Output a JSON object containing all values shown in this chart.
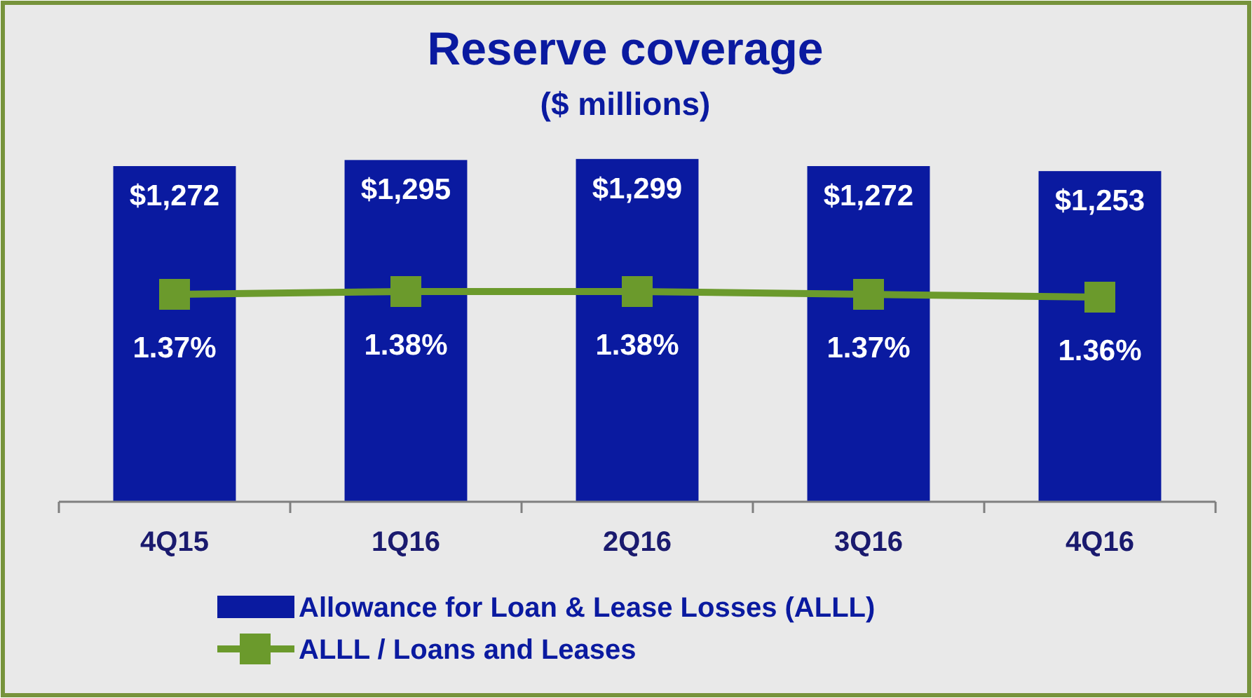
{
  "chart_data": {
    "type": "bar",
    "title": "Reserve coverage",
    "subtitle": "($ millions)",
    "categories": [
      "4Q15",
      "1Q16",
      "2Q16",
      "3Q16",
      "4Q16"
    ],
    "y2lim": [
      0.63,
      2.41
    ],
    "series": [
      {
        "name": "Allowance for Loan & Lease Losses (ALLL)",
        "color": "#0a1aa0",
        "values": [
          1272,
          1295,
          1299,
          1272,
          1253
        ],
        "value_labels": [
          "$1,272",
          "$1,295",
          "$1,299",
          "$1,272",
          "$1,253"
        ]
      },
      {
        "name": "ALLL / Loans and Leases",
        "type": "line",
        "axis": "y2",
        "color": "#6b9a2c",
        "marker": "square",
        "values": [
          1.37,
          1.38,
          1.38,
          1.37,
          1.36
        ],
        "value_labels": [
          "1.37%",
          "1.38%",
          "1.38%",
          "1.37%",
          "1.36%"
        ]
      }
    ],
    "legend": "bottom"
  }
}
